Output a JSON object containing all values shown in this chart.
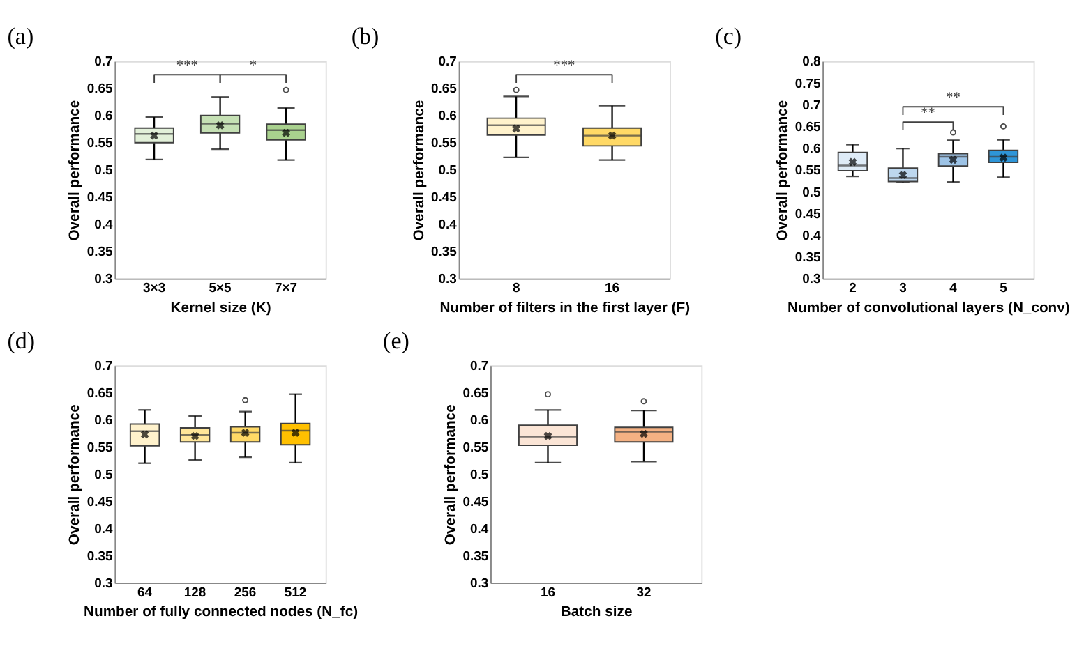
{
  "chart_data": [
    {
      "type": "box",
      "title": "(a)",
      "xlabel": "Kernel size (K)",
      "ylabel": "Overall performance",
      "categories": [
        "3×3",
        "5×5",
        "7×7"
      ],
      "colors": [
        "#e2f0d9",
        "#c5e0b4",
        "#a9d18e"
      ],
      "ylim": [
        0.3,
        0.7
      ],
      "yticks": [
        0.3,
        0.35,
        0.4,
        0.45,
        0.5,
        0.55,
        0.6,
        0.65,
        0.7
      ],
      "grid": false,
      "annotations": [
        "***",
        "*"
      ],
      "boxes": [
        {
          "low": 0.519,
          "q1": 0.55,
          "median": 0.566,
          "q3": 0.577,
          "high": 0.597,
          "mean": 0.563
        },
        {
          "low": 0.538,
          "q1": 0.568,
          "median": 0.585,
          "q3": 0.6,
          "high": 0.634,
          "mean": 0.582
        },
        {
          "low": 0.518,
          "q1": 0.555,
          "median": 0.573,
          "q3": 0.584,
          "high": 0.614,
          "mean": 0.568,
          "outliers": [
            0.647
          ]
        }
      ]
    },
    {
      "type": "box",
      "title": "(b)",
      "xlabel": "Number of filters in the first layer (F)",
      "ylabel": "Overall performance",
      "categories": [
        "8",
        "16"
      ],
      "colors": [
        "#fff2cc",
        "#ffd966"
      ],
      "ylim": [
        0.3,
        0.7
      ],
      "yticks": [
        0.3,
        0.35,
        0.4,
        0.45,
        0.5,
        0.55,
        0.6,
        0.65,
        0.7
      ],
      "grid": false,
      "annotations": [
        "***"
      ],
      "boxes": [
        {
          "low": 0.523,
          "q1": 0.564,
          "median": 0.582,
          "q3": 0.595,
          "high": 0.635,
          "mean": 0.576,
          "outliers": [
            0.647
          ]
        },
        {
          "low": 0.518,
          "q1": 0.544,
          "median": 0.563,
          "q3": 0.577,
          "high": 0.618,
          "mean": 0.563
        }
      ]
    },
    {
      "type": "box",
      "title": "(c)",
      "xlabel": "Number of convolutional layers (N_conv)",
      "ylabel": "Overall performance",
      "categories": [
        "2",
        "3",
        "4",
        "5"
      ],
      "colors": [
        "#deebf7",
        "#bdd7ee",
        "#9dc3e6",
        "#2e95d8"
      ],
      "ylim": [
        0.3,
        0.8
      ],
      "yticks": [
        0.3,
        0.35,
        0.4,
        0.45,
        0.5,
        0.55,
        0.6,
        0.65,
        0.7,
        0.75,
        0.8
      ],
      "grid": false,
      "annotations": [
        "**",
        "**"
      ],
      "boxes": [
        {
          "low": 0.535,
          "q1": 0.548,
          "median": 0.56,
          "q3": 0.59,
          "high": 0.608,
          "mean": 0.568
        },
        {
          "low": 0.521,
          "q1": 0.523,
          "median": 0.531,
          "q3": 0.554,
          "high": 0.599,
          "mean": 0.538
        },
        {
          "low": 0.522,
          "q1": 0.559,
          "median": 0.58,
          "q3": 0.587,
          "high": 0.618,
          "mean": 0.573,
          "outliers": [
            0.636
          ]
        },
        {
          "low": 0.533,
          "q1": 0.567,
          "median": 0.58,
          "q3": 0.595,
          "high": 0.619,
          "mean": 0.578,
          "outliers": [
            0.65
          ]
        }
      ]
    },
    {
      "type": "box",
      "title": "(d)",
      "xlabel": "Number of fully connected nodes (N_fc)",
      "ylabel": "Overall performance",
      "categories": [
        "64",
        "128",
        "256",
        "512"
      ],
      "colors": [
        "#fff2cc",
        "#ffe699",
        "#ffd966",
        "#ffc000"
      ],
      "ylim": [
        0.3,
        0.7
      ],
      "yticks": [
        0.3,
        0.35,
        0.4,
        0.45,
        0.5,
        0.55,
        0.6,
        0.65,
        0.7
      ],
      "grid": false,
      "boxes": [
        {
          "low": 0.52,
          "q1": 0.552,
          "median": 0.579,
          "q3": 0.592,
          "high": 0.618,
          "mean": 0.573
        },
        {
          "low": 0.526,
          "q1": 0.559,
          "median": 0.572,
          "q3": 0.585,
          "high": 0.607,
          "mean": 0.57
        },
        {
          "low": 0.531,
          "q1": 0.559,
          "median": 0.576,
          "q3": 0.587,
          "high": 0.615,
          "mean": 0.576,
          "outliers": [
            0.636
          ]
        },
        {
          "low": 0.521,
          "q1": 0.554,
          "median": 0.58,
          "q3": 0.593,
          "high": 0.647,
          "mean": 0.576
        }
      ]
    },
    {
      "type": "box",
      "title": "(e)",
      "xlabel": "Batch size",
      "ylabel": "Overall performance",
      "categories": [
        "16",
        "32"
      ],
      "colors": [
        "#fbe5d6",
        "#f4b183"
      ],
      "ylim": [
        0.3,
        0.7
      ],
      "yticks": [
        0.3,
        0.35,
        0.4,
        0.45,
        0.5,
        0.55,
        0.6,
        0.65,
        0.7
      ],
      "grid": false,
      "boxes": [
        {
          "low": 0.521,
          "q1": 0.553,
          "median": 0.569,
          "q3": 0.59,
          "high": 0.618,
          "mean": 0.57,
          "outliers": [
            0.647
          ]
        },
        {
          "low": 0.523,
          "q1": 0.559,
          "median": 0.578,
          "q3": 0.586,
          "high": 0.617,
          "mean": 0.574,
          "outliers": [
            0.634
          ]
        }
      ]
    }
  ]
}
